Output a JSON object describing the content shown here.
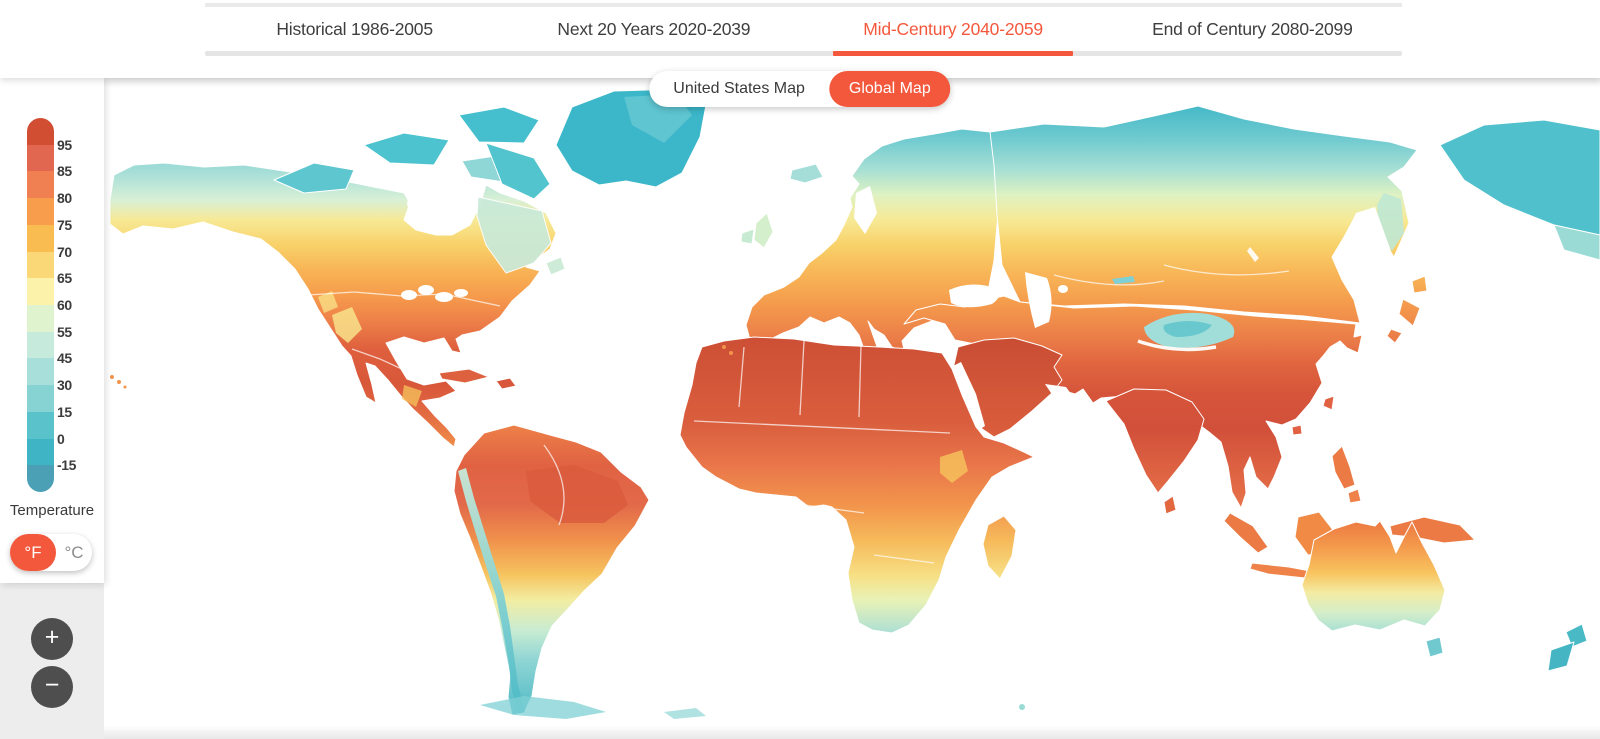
{
  "header": {
    "tabs": [
      {
        "label": "Historical 1986-2005",
        "active": false
      },
      {
        "label": "Next 20 Years 2020-2039",
        "active": false
      },
      {
        "label": "Mid-Century 2040-2059",
        "active": true
      },
      {
        "label": "End of Century 2080-2099",
        "active": false
      }
    ]
  },
  "map_toggle": {
    "us_label": "United States Map",
    "global_label": "Global Map",
    "selected": "Global Map"
  },
  "legend": {
    "title": "Temperature",
    "tick_labels": [
      "95",
      "85",
      "80",
      "75",
      "70",
      "65",
      "60",
      "55",
      "45",
      "30",
      "15",
      "0",
      "-15"
    ],
    "segment_colors": [
      "#d14e33",
      "#e16750",
      "#f08052",
      "#f89d4b",
      "#f8bc51",
      "#fbd877",
      "#fdf2a9",
      "#e0f3cf",
      "#c6ebdd",
      "#a9dfda",
      "#87d3d3",
      "#5ac2ca",
      "#3eb4c4",
      "#4ba0b5"
    ],
    "unit_toggle": {
      "fahrenheit": "°F",
      "celsius": "°C",
      "selected": "°F"
    }
  },
  "zoom_controls": {
    "zoom_in": "+",
    "zoom_out": "−"
  },
  "colors": {
    "accent": "#F4583C",
    "tab_text": "#3E3E3E",
    "tab_track": "#E5E5E5",
    "ocean": "#FFFFFF",
    "region_border": "#FFFFFF",
    "panel_background": "#FFFFFF",
    "zoom_button": "#4E4E4E"
  },
  "map": {
    "type": "world-choropleth",
    "ocean_color": "#FFFFFF",
    "border_color": "#FFFFFF",
    "regions": [
      {
        "area": "Arctic Canada / Greenland / NE Siberia",
        "color": "#3EB8C9"
      },
      {
        "area": "Northern Canada / Northern Siberia / Tibet",
        "color": "#A8E0D6"
      },
      {
        "area": "Mid Canada / Central Siberia",
        "color": "#F7E995"
      },
      {
        "area": "Northern US / Central Asia / Europe",
        "color": "#F8B456"
      },
      {
        "area": "Southern US / Mexico / Mediterranean / China",
        "color": "#E8764A"
      },
      {
        "area": "Sahara / Arabia / India / Amazon core",
        "color": "#D2503A"
      },
      {
        "area": "Central Africa / Brazil / SE Asia / N Australia",
        "color": "#F2944C"
      },
      {
        "area": "Southern Africa / Argentina / S Australia",
        "color": "#F6D36B"
      },
      {
        "area": "Patagonia / Tasmania / New Zealand",
        "color": "#5FC4CB"
      }
    ]
  }
}
